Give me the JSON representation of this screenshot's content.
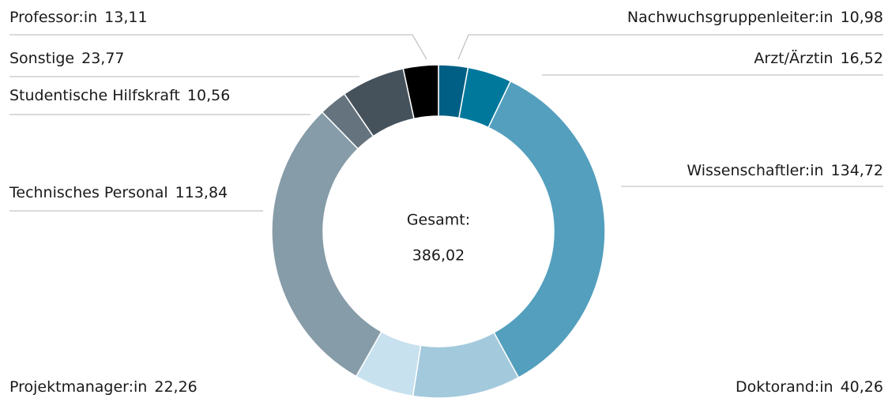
{
  "chart_data": {
    "type": "donut",
    "center_title": "Gesamt:",
    "total": {
      "value": 386.02,
      "label": "386,02"
    },
    "categories": [
      "Nachwuchsgruppenleiter:in",
      "Arzt/Ärztin",
      "Wissenschaftler:in",
      "Doktorand:in",
      "Projektmanager:in",
      "Technisches Personal",
      "Studentische Hilfskraft",
      "Sonstige",
      "Professor:in"
    ],
    "values": [
      10.98,
      16.52,
      134.72,
      40.26,
      22.26,
      113.84,
      10.56,
      23.77,
      13.11
    ],
    "value_labels": [
      "10,98",
      "16,52",
      "134,72",
      "40,26",
      "22,26",
      "113,84",
      "10,56",
      "23,77",
      "13,11"
    ],
    "colors": [
      "#005f84",
      "#00789c",
      "#539fbd",
      "#a3c9dc",
      "#c8e1ef",
      "#869ca8",
      "#64737d",
      "#46525b",
      "#000000"
    ]
  }
}
